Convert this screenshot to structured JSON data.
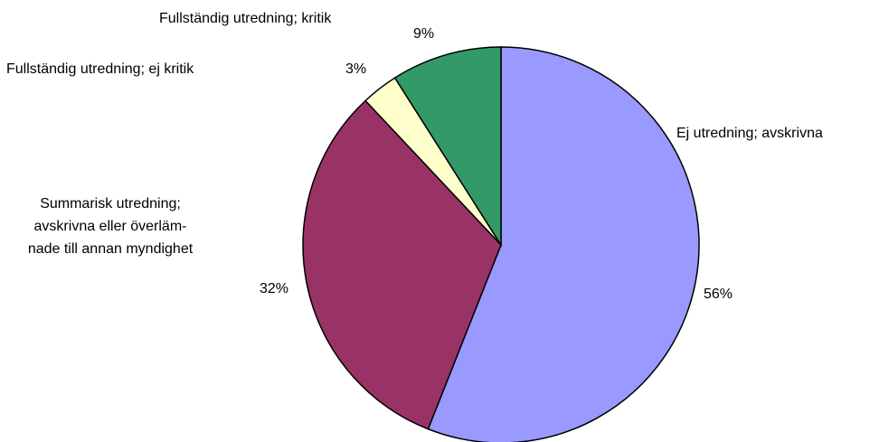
{
  "chart_data": {
    "type": "pie",
    "title": "",
    "start_angle_deg": 0,
    "direction": "clockwise",
    "slices": [
      {
        "label": "Ej utredning; avskrivna",
        "value": 56,
        "value_label": "56%",
        "color": "#9999ff"
      },
      {
        "label": "Summarisk utredning; avskrivna eller överlämnade till annan myndighet",
        "label_lines": [
          "Summarisk utredning;",
          "avskrivna eller överläm-",
          "nade till annan myndighet"
        ],
        "value": 32,
        "value_label": "32%",
        "color": "#993366"
      },
      {
        "label": "Fullständig utredning; ej kritik",
        "value": 3,
        "value_label": "3%",
        "color": "#ffffcc"
      },
      {
        "label": "Fullständig utredning; kritik",
        "value": 9,
        "value_label": "9%",
        "color": "#339966"
      }
    ]
  }
}
